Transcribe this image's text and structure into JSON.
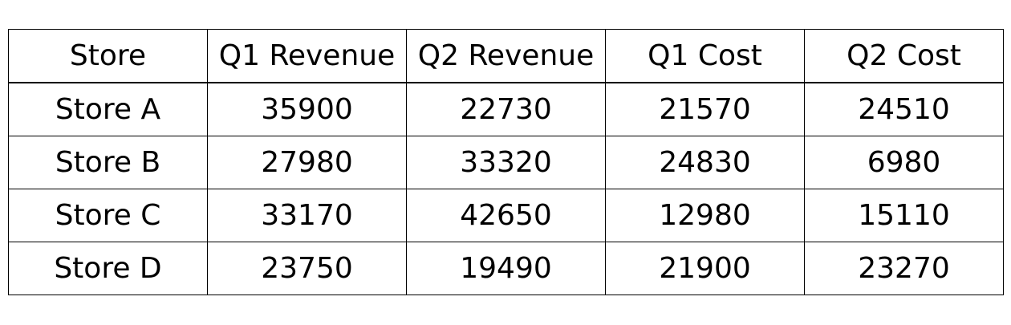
{
  "chart_data": {
    "type": "table",
    "columns": [
      "Store",
      "Q1 Revenue",
      "Q2 Revenue",
      "Q1 Cost",
      "Q2 Cost"
    ],
    "rows": [
      [
        "Store A",
        "35900",
        "22730",
        "21570",
        "24510"
      ],
      [
        "Store B",
        "27980",
        "33320",
        "24830",
        "6980"
      ],
      [
        "Store C",
        "33170",
        "42650",
        "12980",
        "15110"
      ],
      [
        "Store D",
        "23750",
        "19490",
        "21900",
        "23270"
      ]
    ]
  }
}
